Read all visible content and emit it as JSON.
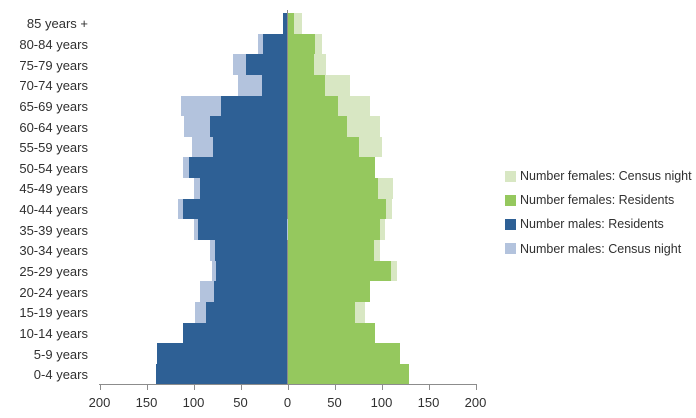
{
  "chart_data": {
    "type": "bar",
    "subtype": "population-pyramid",
    "title": "",
    "xlabel": "",
    "ylabel": "",
    "grid": false,
    "legend_position": "right",
    "categories": [
      "85 years +",
      "80-84 years",
      "75-79 years",
      "70-74 years",
      "65-69 years",
      "60-64 years",
      "55-59 years",
      "50-54 years",
      "45-49 years",
      "40-44 years",
      "35-39 years",
      "30-34 years",
      "25-29 years",
      "20-24 years",
      "15-19 years",
      "10-14 years",
      "5-9 years",
      "0-4 years"
    ],
    "x_axis": {
      "xlim": [
        -200,
        200
      ],
      "tick_values": [
        -200,
        -150,
        -100,
        -50,
        0,
        50,
        100,
        150,
        200
      ],
      "tick_labels": [
        "200",
        "150",
        "100",
        "50",
        "0",
        "50",
        "100",
        "150",
        "200"
      ]
    },
    "series": [
      {
        "name": "Number females: Census night",
        "side": "right",
        "layer": "back",
        "color_key": "female_census",
        "values": [
          15,
          37,
          41,
          66,
          88,
          98,
          101,
          90,
          112,
          111,
          104,
          98,
          117,
          85,
          82,
          90,
          117,
          126
        ]
      },
      {
        "name": "Number females: Residents",
        "side": "right",
        "layer": "front",
        "color_key": "female_resident",
        "values": [
          7,
          29,
          28,
          40,
          54,
          63,
          76,
          93,
          96,
          105,
          98,
          92,
          110,
          88,
          72,
          93,
          120,
          129
        ]
      },
      {
        "name": "Number males: Residents",
        "side": "left",
        "layer": "front",
        "color_key": "male_resident",
        "values": [
          5,
          26,
          44,
          27,
          71,
          82,
          79,
          105,
          93,
          111,
          95,
          77,
          76,
          78,
          87,
          111,
          139,
          140
        ]
      },
      {
        "name": "Number males: Census night",
        "side": "left",
        "layer": "back",
        "color_key": "male_census",
        "values": [
          5,
          31,
          58,
          53,
          113,
          110,
          102,
          111,
          99,
          116,
          100,
          82,
          80,
          93,
          98,
          108,
          136,
          136
        ]
      }
    ]
  },
  "legend": {
    "items": [
      {
        "label": "Number females: Census night",
        "color_key": "female_census"
      },
      {
        "label": "Number females: Residents",
        "color_key": "female_resident"
      },
      {
        "label": "Number males: Residents",
        "color_key": "male_resident"
      },
      {
        "label": "Number males: Census night",
        "color_key": "male_census"
      }
    ]
  },
  "colors": {
    "female_census": "#D8E7C3",
    "female_resident": "#95C85E",
    "male_resident": "#2E6095",
    "male_census": "#B3C3DD",
    "axis": "#8C8C8C",
    "text": "#303030"
  }
}
